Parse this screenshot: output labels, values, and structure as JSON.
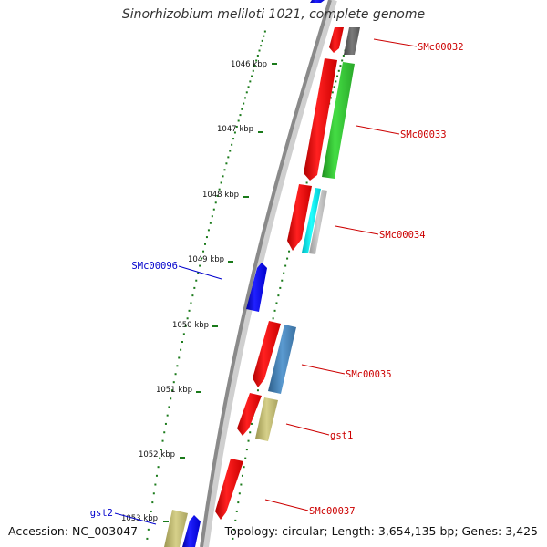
{
  "title": "Sinorhizobium meliloti 1021, complete genome",
  "accession": "Accession: NC_003047",
  "summary": "Topology: circular; Length: 3,654,135 bp; Genes: 3,425",
  "ticks": [
    {
      "label": "1046 kbp"
    },
    {
      "label": "1047 kbp"
    },
    {
      "label": "1048 kbp"
    },
    {
      "label": "1049 kbp"
    },
    {
      "label": "1050 kbp"
    },
    {
      "label": "1051 kbp"
    },
    {
      "label": "1052 kbp"
    },
    {
      "label": "1053 kbp"
    }
  ],
  "gene_labels": [
    {
      "text": "SMc00032",
      "color": "#cc0000"
    },
    {
      "text": "SMc00033",
      "color": "#cc0000"
    },
    {
      "text": "SMc00034",
      "color": "#cc0000"
    },
    {
      "text": "SMc00096",
      "color": "#0000cc"
    },
    {
      "text": "SMc00035",
      "color": "#cc0000"
    },
    {
      "text": "gst1",
      "color": "#cc0000"
    },
    {
      "text": "SMc00037",
      "color": "#cc0000"
    },
    {
      "text": "gst2",
      "color": "#0000cc"
    }
  ],
  "colors": {
    "backbone": "#888888",
    "ticks": "#1a7a1a",
    "cds": "#ff0000",
    "reverse_gene": "#0000ff",
    "go_green": "#33cc33",
    "go_cyan": "#00e5ee",
    "go_steelblue": "#4682b4",
    "go_khaki": "#bdb76b",
    "go_gray": "#666666",
    "go_lightgray": "#b0b0b0"
  }
}
